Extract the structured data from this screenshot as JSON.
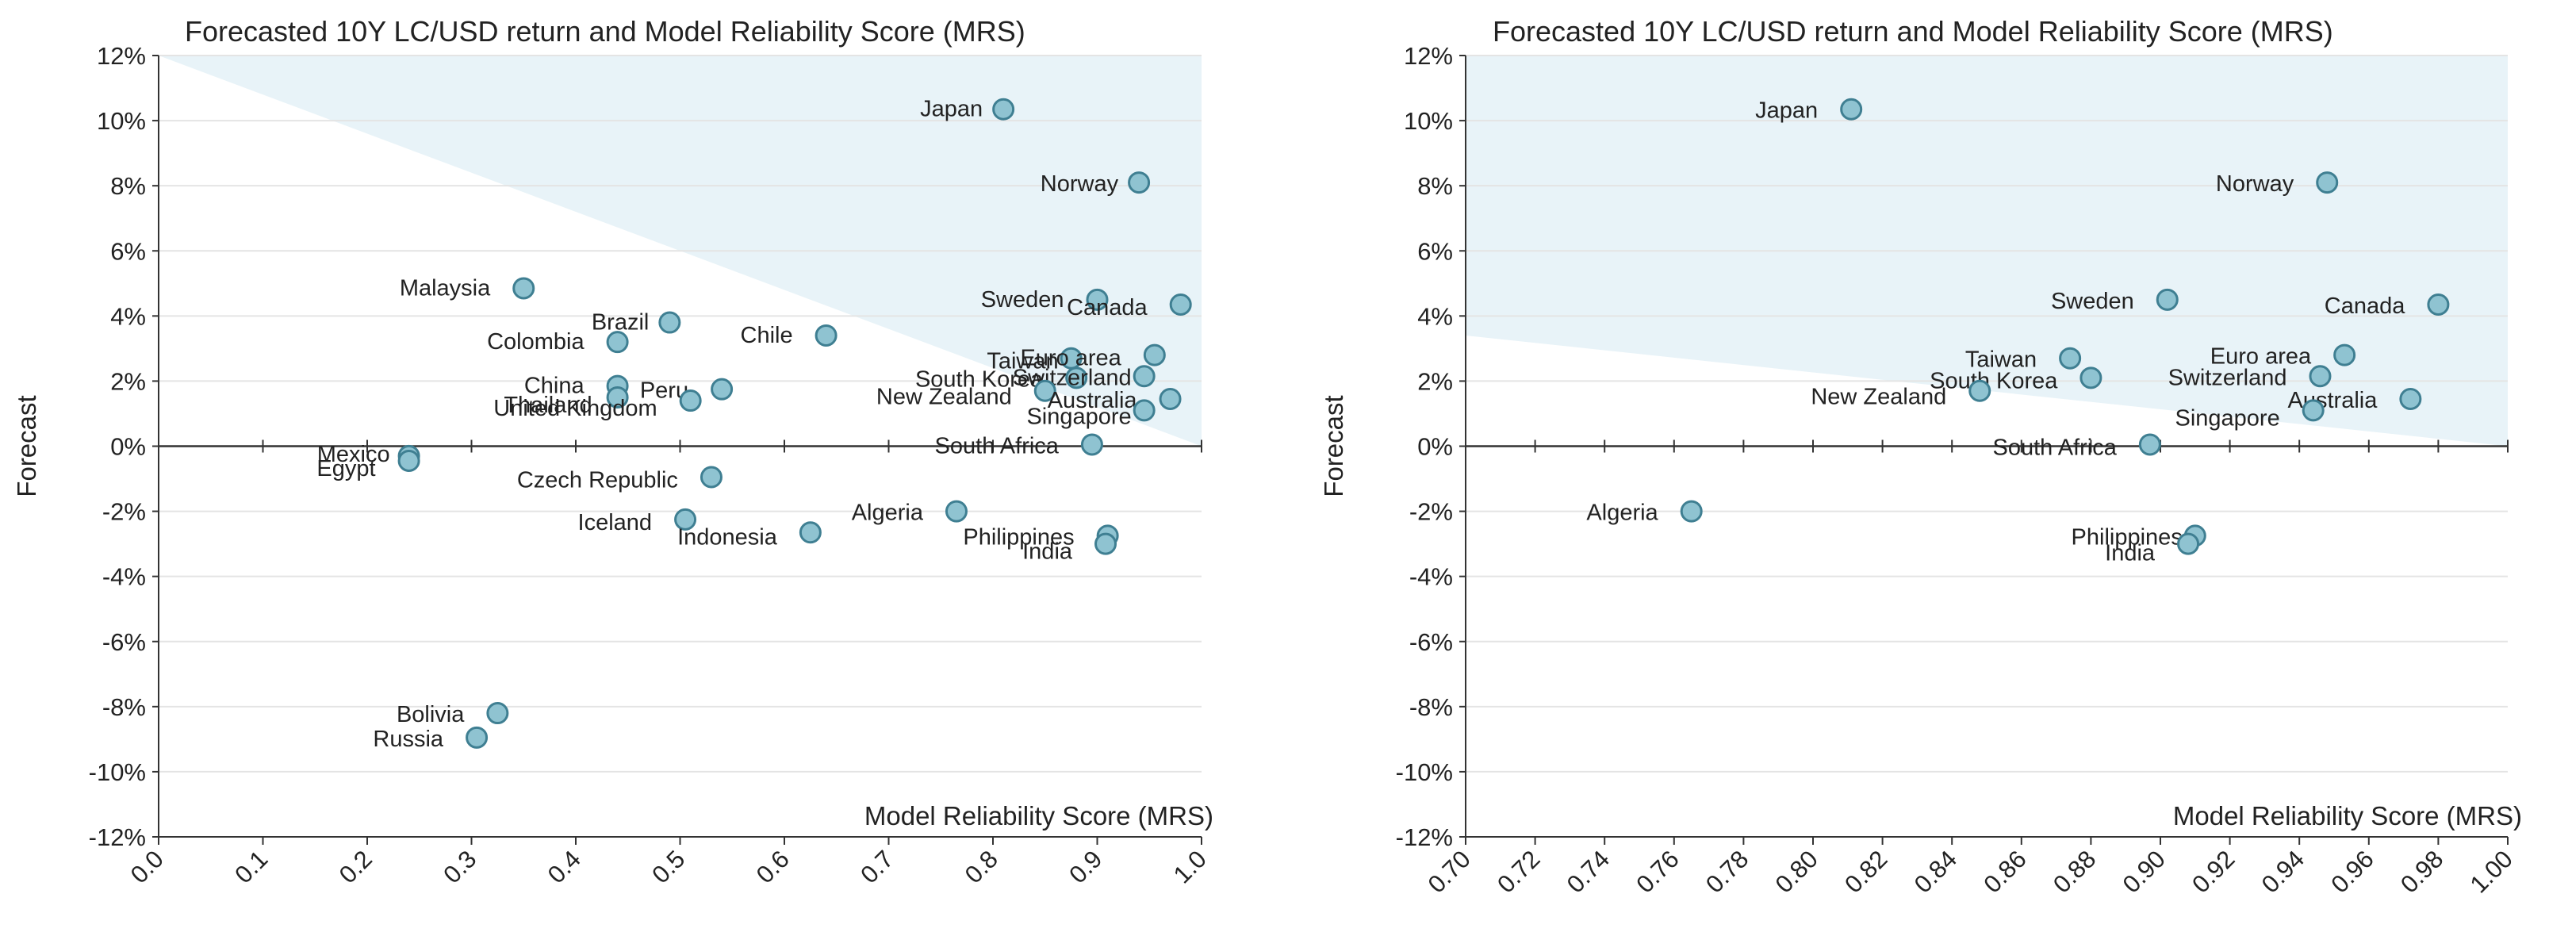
{
  "chart_data": [
    {
      "type": "scatter",
      "title": "Forecasted 10Y LC/USD return and Model Reliability Score (MRS)",
      "xlabel": "Model Reliability Score (MRS)",
      "ylabel": "Forecast",
      "xlim": [
        0.0,
        1.0
      ],
      "ylim": [
        -12,
        12
      ],
      "x_ticks": [
        "0.0",
        "0.1",
        "0.2",
        "0.3",
        "0.4",
        "0.5",
        "0.6",
        "0.7",
        "0.8",
        "0.9",
        "1.0"
      ],
      "y_ticks": [
        "12%",
        "10%",
        "8%",
        "6%",
        "4%",
        "2%",
        "0%",
        "-2%",
        "-4%",
        "-6%",
        "-8%",
        "-10%",
        "-12%"
      ],
      "grid": "horizontal",
      "shaded_region": {
        "description": "light blue triangular area upper right",
        "color": "#e8f3f8"
      },
      "marker_color": "#8fc3d1",
      "marker_edge": "#3f7f92",
      "points": [
        {
          "label": "Japan",
          "x": 0.81,
          "y": 10.35
        },
        {
          "label": "Norway",
          "x": 0.94,
          "y": 8.1
        },
        {
          "label": "Malaysia",
          "x": 0.35,
          "y": 4.85
        },
        {
          "label": "Brazil",
          "x": 0.49,
          "y": 3.8
        },
        {
          "label": "Colombia",
          "x": 0.44,
          "y": 3.2
        },
        {
          "label": "Chile",
          "x": 0.64,
          "y": 3.4
        },
        {
          "label": "Sweden",
          "x": 0.9,
          "y": 4.5
        },
        {
          "label": "Canada",
          "x": 0.98,
          "y": 4.35
        },
        {
          "label": "Taiwan",
          "x": 0.875,
          "y": 2.7
        },
        {
          "label": "Euro area",
          "x": 0.955,
          "y": 2.8
        },
        {
          "label": "South Korea",
          "x": 0.88,
          "y": 2.1
        },
        {
          "label": "Switzerland",
          "x": 0.945,
          "y": 2.15
        },
        {
          "label": "New Zealand",
          "x": 0.85,
          "y": 1.7
        },
        {
          "label": "Australia",
          "x": 0.97,
          "y": 1.45
        },
        {
          "label": "Singapore",
          "x": 0.945,
          "y": 1.1
        },
        {
          "label": "China",
          "x": 0.44,
          "y": 1.85
        },
        {
          "label": "Peru",
          "x": 0.54,
          "y": 1.75
        },
        {
          "label": "Thailand",
          "x": 0.44,
          "y": 1.5
        },
        {
          "label": "United Kingdom",
          "x": 0.51,
          "y": 1.4
        },
        {
          "label": "South Africa",
          "x": 0.895,
          "y": 0.05
        },
        {
          "label": "Mexico",
          "x": 0.24,
          "y": -0.3
        },
        {
          "label": "Egypt",
          "x": 0.24,
          "y": -0.45
        },
        {
          "label": "Czech Republic",
          "x": 0.53,
          "y": -0.95
        },
        {
          "label": "Algeria",
          "x": 0.765,
          "y": -2.0
        },
        {
          "label": "Iceland",
          "x": 0.505,
          "y": -2.25
        },
        {
          "label": "Indonesia",
          "x": 0.625,
          "y": -2.65
        },
        {
          "label": "Philippines",
          "x": 0.91,
          "y": -2.75
        },
        {
          "label": "India",
          "x": 0.908,
          "y": -3.0
        },
        {
          "label": "Bolivia",
          "x": 0.325,
          "y": -8.2
        },
        {
          "label": "Russia",
          "x": 0.305,
          "y": -8.95
        }
      ]
    },
    {
      "type": "scatter",
      "title": "Forecasted 10Y LC/USD return and Model Reliability Score (MRS)",
      "xlabel": "Model Reliability Score (MRS)",
      "ylabel": "Forecast",
      "xlim": [
        0.7,
        1.0
      ],
      "ylim": [
        -12,
        12
      ],
      "x_ticks": [
        "0.70",
        "0.72",
        "0.74",
        "0.76",
        "0.78",
        "0.80",
        "0.82",
        "0.84",
        "0.86",
        "0.88",
        "0.90",
        "0.92",
        "0.94",
        "0.96",
        "0.98",
        "1.00"
      ],
      "y_ticks": [
        "12%",
        "10%",
        "8%",
        "6%",
        "4%",
        "2%",
        "0%",
        "-2%",
        "-4%",
        "-6%",
        "-8%",
        "-10%",
        "-12%"
      ],
      "grid": "horizontal",
      "shaded_region": {
        "description": "light blue area above declining line",
        "color": "#e8f3f8"
      },
      "marker_color": "#8fc3d1",
      "marker_edge": "#3f7f92",
      "points": [
        {
          "label": "Japan",
          "x": 0.811,
          "y": 10.35
        },
        {
          "label": "Norway",
          "x": 0.948,
          "y": 8.1
        },
        {
          "label": "Sweden",
          "x": 0.902,
          "y": 4.5
        },
        {
          "label": "Canada",
          "x": 0.98,
          "y": 4.35
        },
        {
          "label": "Taiwan",
          "x": 0.874,
          "y": 2.7
        },
        {
          "label": "Euro area",
          "x": 0.953,
          "y": 2.8
        },
        {
          "label": "South Korea",
          "x": 0.88,
          "y": 2.1
        },
        {
          "label": "Switzerland",
          "x": 0.946,
          "y": 2.15
        },
        {
          "label": "New Zealand",
          "x": 0.848,
          "y": 1.7
        },
        {
          "label": "Australia",
          "x": 0.972,
          "y": 1.45
        },
        {
          "label": "Singapore",
          "x": 0.944,
          "y": 1.1
        },
        {
          "label": "South Africa",
          "x": 0.897,
          "y": 0.05
        },
        {
          "label": "Algeria",
          "x": 0.765,
          "y": -2.0
        },
        {
          "label": "Philippines",
          "x": 0.91,
          "y": -2.75
        },
        {
          "label": "India",
          "x": 0.908,
          "y": -3.0
        }
      ]
    }
  ]
}
